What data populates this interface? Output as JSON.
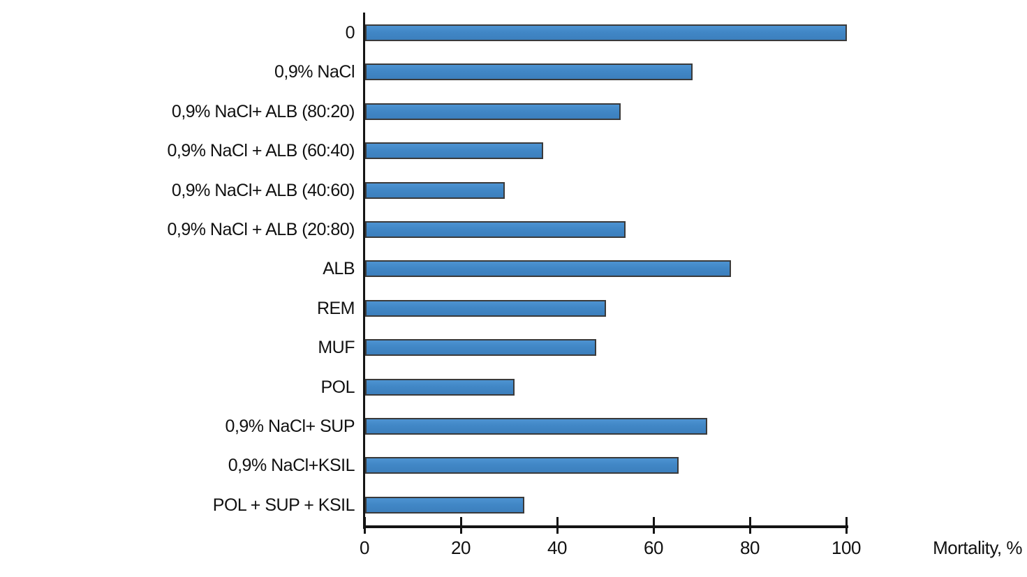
{
  "chart_data": {
    "type": "bar",
    "orientation": "horizontal",
    "title": "",
    "xlabel": "Mortality, %",
    "ylabel": "",
    "xlim": [
      0,
      100
    ],
    "x_ticks": [
      0,
      20,
      40,
      60,
      80,
      100
    ],
    "grid": false,
    "legend": false,
    "categories": [
      "0",
      "0,9% NaCl",
      "0,9% NaCl+ ALB (80:20)",
      "0,9% NaCl + ALB (60:40)",
      "0,9% NaCl+ ALB (40:60)",
      "0,9% NaCl + ALB (20:80)",
      "ALB",
      "REM",
      "MUF",
      "POL",
      "0,9% NaCl+ SUP",
      "0,9% NaCl+KSIL",
      "POL + SUP + KSIL"
    ],
    "values": [
      100,
      68,
      53,
      37,
      29,
      54,
      76,
      50,
      48,
      31,
      71,
      65,
      33
    ],
    "colors": {
      "bar_fill": "#4187c6",
      "bar_border": "#3a3a3a",
      "axis": "#141414",
      "text": "#111111",
      "background": "#ffffff"
    }
  }
}
